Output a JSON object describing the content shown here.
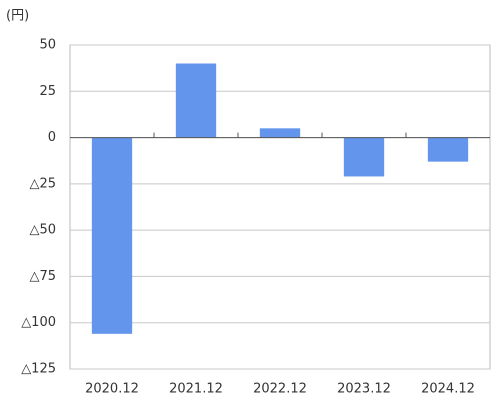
{
  "chart_data": {
    "type": "bar",
    "y_axis_label": "(円)",
    "categories": [
      "2020.12",
      "2021.12",
      "2022.12",
      "2023.12",
      "2024.12"
    ],
    "values": [
      -106,
      40,
      5,
      -21,
      -13
    ],
    "color": "#6495ed",
    "ylim": [
      -125,
      50
    ],
    "yticks": [
      50,
      25,
      0,
      {
        "value": -25,
        "label": "△25"
      },
      {
        "value": -50,
        "label": "△50"
      },
      {
        "value": -75,
        "label": "△75"
      },
      {
        "value": -100,
        "label": "△100"
      },
      {
        "value": -125,
        "label": "△125"
      }
    ],
    "grid": true
  }
}
